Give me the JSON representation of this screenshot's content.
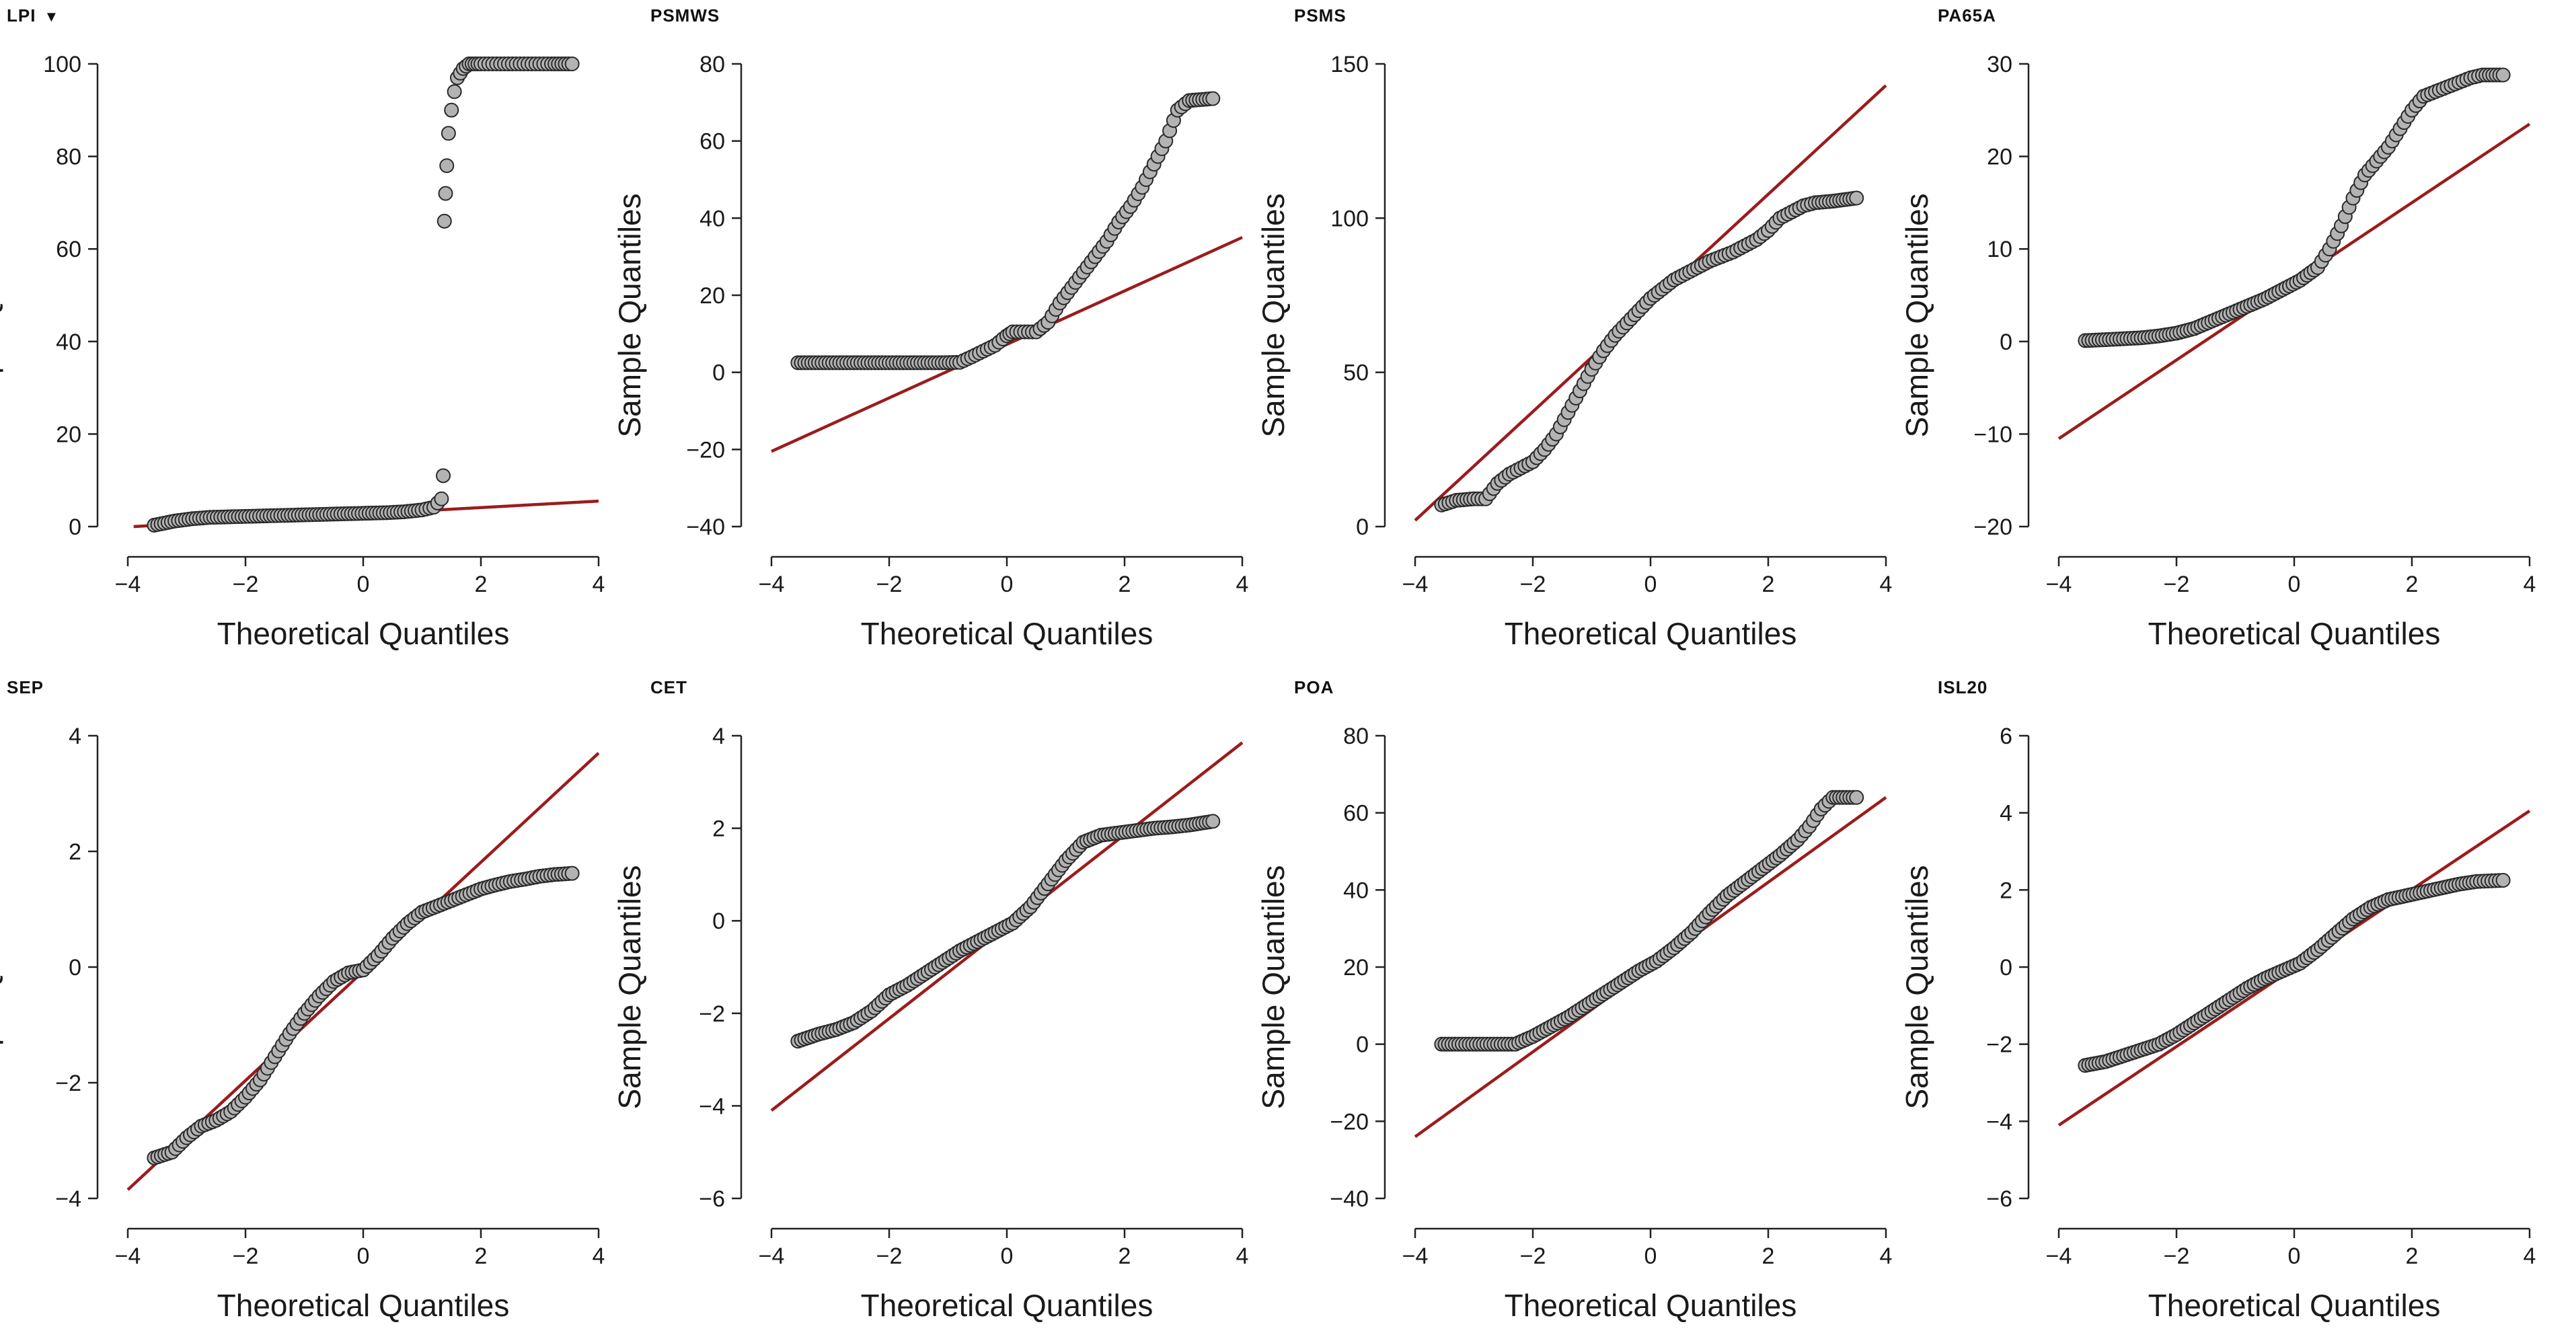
{
  "menu_caret": "▼",
  "chart_data": [
    {
      "type": "scatter",
      "title": "LPI",
      "xlabel": "Theoretical Quantiles",
      "ylabel": "Sample Quantiles",
      "xlim": [
        -4,
        4
      ],
      "ylim": [
        0,
        100
      ],
      "xticks": [
        -4,
        -2,
        0,
        2,
        4
      ],
      "yticks": [
        0,
        20,
        40,
        60,
        80,
        100
      ],
      "line": {
        "x": [
          -3.9,
          4.0
        ],
        "y": [
          0.0,
          5.5
        ],
        "color": "#9b1c1c"
      },
      "points": {
        "x": [
          -3.55,
          -3.2,
          -2.9,
          -2.6,
          -2.3,
          -2.0,
          -1.7,
          -1.4,
          -1.1,
          -0.8,
          -0.5,
          -0.2,
          0.1,
          0.4,
          0.7,
          1.0,
          1.2,
          1.33,
          1.36,
          1.38,
          1.4,
          1.42,
          1.45,
          1.5,
          1.55,
          1.6,
          1.7,
          1.8,
          1.9,
          2.0,
          2.2,
          2.4,
          2.6,
          2.8,
          3.0,
          3.2,
          3.55
        ],
        "y": [
          0.3,
          1.2,
          1.7,
          2.0,
          2.1,
          2.2,
          2.3,
          2.4,
          2.5,
          2.6,
          2.7,
          2.8,
          2.9,
          3.0,
          3.2,
          3.6,
          4.2,
          6.0,
          11.0,
          66.0,
          72.0,
          78.0,
          85.0,
          90.0,
          94.0,
          97.0,
          99.0,
          100,
          100,
          100,
          100,
          100,
          100,
          100,
          100,
          100,
          100
        ]
      }
    },
    {
      "type": "scatter",
      "title": "PSMWS",
      "xlabel": "Theoretical Quantiles",
      "ylabel": "Sample Quantiles",
      "xlim": [
        -4,
        4
      ],
      "ylim": [
        -40,
        80
      ],
      "xticks": [
        -4,
        -2,
        0,
        2,
        4
      ],
      "yticks": [
        -40,
        -20,
        0,
        20,
        40,
        60,
        80
      ],
      "line": {
        "x": [
          -4.0,
          4.0
        ],
        "y": [
          -20.5,
          35.0
        ],
        "color": "#9b1c1c"
      },
      "points": {
        "x": [
          -3.55,
          -3.2,
          -2.9,
          -2.6,
          -2.3,
          -2.0,
          -1.7,
          -1.4,
          -1.1,
          -0.8,
          -0.6,
          -0.4,
          -0.2,
          0.0,
          0.1,
          0.3,
          0.5,
          0.7,
          0.9,
          1.1,
          1.3,
          1.5,
          1.7,
          1.9,
          2.1,
          2.3,
          2.5,
          2.7,
          2.9,
          3.1,
          3.5
        ],
        "y": [
          2.5,
          2.5,
          2.5,
          2.5,
          2.5,
          2.5,
          2.5,
          2.5,
          2.5,
          2.6,
          4.0,
          5.5,
          7.0,
          9.5,
          10.5,
          10.5,
          10.5,
          13.0,
          18.0,
          22.0,
          26.0,
          30.0,
          34.0,
          39.0,
          43.0,
          48.0,
          54.0,
          60.0,
          68.0,
          70.5,
          71.0
        ]
      }
    },
    {
      "type": "scatter",
      "title": "PSMS",
      "xlabel": "Theoretical Quantiles",
      "ylabel": "Sample Quantiles",
      "xlim": [
        -4,
        4
      ],
      "ylim": [
        0,
        150
      ],
      "xticks": [
        -4,
        -2,
        0,
        2,
        4
      ],
      "yticks": [
        0,
        50,
        100,
        150
      ],
      "line": {
        "x": [
          -4.0,
          4.0
        ],
        "y": [
          2.0,
          143.0
        ],
        "color": "#9b1c1c"
      },
      "points": {
        "x": [
          -3.55,
          -3.3,
          -3.0,
          -2.8,
          -2.6,
          -2.4,
          -2.2,
          -2.0,
          -1.8,
          -1.6,
          -1.4,
          -1.2,
          -1.0,
          -0.8,
          -0.6,
          -0.4,
          -0.2,
          0.0,
          0.2,
          0.4,
          0.6,
          0.8,
          1.0,
          1.2,
          1.4,
          1.6,
          1.8,
          2.0,
          2.2,
          2.4,
          2.6,
          2.8,
          3.1,
          3.5
        ],
        "y": [
          7.0,
          8.5,
          9.0,
          9.0,
          14.0,
          17.0,
          19.0,
          21.0,
          25.0,
          30.0,
          37.0,
          44.0,
          51.0,
          57.0,
          62.0,
          66.0,
          70.0,
          74.0,
          77.0,
          80.0,
          82.0,
          84.0,
          86.0,
          87.5,
          89.0,
          91.0,
          93.0,
          96.0,
          100.0,
          102.0,
          104.0,
          105.0,
          105.5,
          106.5
        ]
      }
    },
    {
      "type": "scatter",
      "title": "PA65A",
      "xlabel": "Theoretical Quantiles",
      "ylabel": "Sample Quantiles",
      "xlim": [
        -4,
        4
      ],
      "ylim": [
        -20,
        30
      ],
      "xticks": [
        -4,
        -2,
        0,
        2,
        4
      ],
      "yticks": [
        -20,
        -10,
        0,
        10,
        20,
        30
      ],
      "line": {
        "x": [
          -4.0,
          4.0
        ],
        "y": [
          -10.5,
          23.5
        ],
        "color": "#9b1c1c"
      },
      "points": {
        "x": [
          -3.55,
          -3.2,
          -2.9,
          -2.6,
          -2.3,
          -2.0,
          -1.7,
          -1.4,
          -1.1,
          -0.8,
          -0.5,
          -0.2,
          0.1,
          0.4,
          0.6,
          0.8,
          1.0,
          1.2,
          1.4,
          1.6,
          1.8,
          2.0,
          2.2,
          2.4,
          2.6,
          2.8,
          3.0,
          3.2,
          3.55
        ],
        "y": [
          0.1,
          0.2,
          0.3,
          0.4,
          0.6,
          0.9,
          1.4,
          2.2,
          3.0,
          3.8,
          4.6,
          5.6,
          6.6,
          8.0,
          10.0,
          12.5,
          15.5,
          18.0,
          19.5,
          21.0,
          23.0,
          25.0,
          26.5,
          27.0,
          27.5,
          28.0,
          28.5,
          28.8,
          28.8
        ]
      }
    },
    {
      "type": "scatter",
      "title": "SEP",
      "xlabel": "Theoretical Quantiles",
      "ylabel": "Sample Quantiles",
      "xlim": [
        -4,
        4
      ],
      "ylim": [
        -4,
        4
      ],
      "xticks": [
        -4,
        -2,
        0,
        2,
        4
      ],
      "yticks": [
        -4,
        -2,
        0,
        2,
        4
      ],
      "line": {
        "x": [
          -4.0,
          4.0
        ],
        "y": [
          -3.85,
          3.7
        ],
        "color": "#9b1c1c"
      },
      "points": {
        "x": [
          -3.55,
          -3.25,
          -3.0,
          -2.75,
          -2.5,
          -2.25,
          -2.0,
          -1.75,
          -1.5,
          -1.25,
          -1.0,
          -0.75,
          -0.5,
          -0.25,
          0.0,
          0.25,
          0.5,
          0.75,
          1.0,
          1.25,
          1.5,
          1.75,
          2.0,
          2.25,
          2.5,
          2.75,
          3.0,
          3.25,
          3.55
        ],
        "y": [
          -3.3,
          -3.2,
          -2.95,
          -2.75,
          -2.65,
          -2.5,
          -2.25,
          -1.95,
          -1.55,
          -1.15,
          -0.8,
          -0.5,
          -0.25,
          -0.1,
          -0.05,
          0.2,
          0.5,
          0.75,
          0.95,
          1.05,
          1.15,
          1.25,
          1.35,
          1.42,
          1.48,
          1.52,
          1.57,
          1.6,
          1.62
        ]
      }
    },
    {
      "type": "scatter",
      "title": "CET",
      "xlabel": "Theoretical Quantiles",
      "ylabel": "Sample Quantiles",
      "xlim": [
        -4,
        4
      ],
      "ylim": [
        -6,
        4
      ],
      "xticks": [
        -4,
        -2,
        0,
        2,
        4
      ],
      "yticks": [
        -6,
        -4,
        -2,
        0,
        2,
        4
      ],
      "line": {
        "x": [
          -4.0,
          4.0
        ],
        "y": [
          -4.1,
          3.85
        ],
        "color": "#9b1c1c"
      },
      "points": {
        "x": [
          -3.55,
          -3.2,
          -2.9,
          -2.6,
          -2.3,
          -2.0,
          -1.7,
          -1.4,
          -1.1,
          -0.8,
          -0.5,
          -0.2,
          0.1,
          0.4,
          0.7,
          1.0,
          1.3,
          1.6,
          1.9,
          2.2,
          2.5,
          2.8,
          3.1,
          3.5
        ],
        "y": [
          -2.6,
          -2.45,
          -2.35,
          -2.2,
          -1.95,
          -1.6,
          -1.4,
          -1.15,
          -0.9,
          -0.65,
          -0.45,
          -0.25,
          -0.05,
          0.3,
          0.8,
          1.3,
          1.7,
          1.85,
          1.9,
          1.95,
          2.0,
          2.03,
          2.07,
          2.15
        ]
      }
    },
    {
      "type": "scatter",
      "title": "POA",
      "xlabel": "Theoretical Quantiles",
      "ylabel": "Sample Quantiles",
      "xlim": [
        -4,
        4
      ],
      "ylim": [
        -40,
        80
      ],
      "xticks": [
        -4,
        -2,
        0,
        2,
        4
      ],
      "yticks": [
        -40,
        -20,
        0,
        20,
        40,
        60,
        80
      ],
      "line": {
        "x": [
          -4.0,
          4.0
        ],
        "y": [
          -24.0,
          64.0
        ],
        "color": "#9b1c1c"
      },
      "points": {
        "x": [
          -3.55,
          -3.2,
          -2.9,
          -2.6,
          -2.3,
          -2.0,
          -1.7,
          -1.4,
          -1.1,
          -0.8,
          -0.5,
          -0.2,
          0.1,
          0.4,
          0.7,
          1.0,
          1.3,
          1.6,
          1.9,
          2.2,
          2.5,
          2.7,
          2.9,
          3.1,
          3.5
        ],
        "y": [
          0.0,
          0.0,
          0.0,
          0.0,
          0.0,
          2.0,
          4.5,
          7.0,
          10.0,
          13.0,
          16.0,
          19.0,
          21.5,
          25.0,
          29.0,
          34.0,
          38.5,
          42.0,
          45.5,
          49.0,
          53.0,
          56.5,
          61.0,
          64.0,
          64.0
        ]
      }
    },
    {
      "type": "scatter",
      "title": "ISL20",
      "xlabel": "Theoretical Quantiles",
      "ylabel": "Sample Quantiles",
      "xlim": [
        -4,
        4
      ],
      "ylim": [
        -6,
        6
      ],
      "xticks": [
        -4,
        -2,
        0,
        2,
        4
      ],
      "yticks": [
        -6,
        -4,
        -2,
        0,
        2,
        4,
        6
      ],
      "line": {
        "x": [
          -4.0,
          4.0
        ],
        "y": [
          -4.1,
          4.05
        ],
        "color": "#9b1c1c"
      },
      "points": {
        "x": [
          -3.55,
          -3.2,
          -2.9,
          -2.6,
          -2.3,
          -2.0,
          -1.7,
          -1.4,
          -1.1,
          -0.8,
          -0.5,
          -0.2,
          0.1,
          0.4,
          0.7,
          1.0,
          1.3,
          1.6,
          1.9,
          2.2,
          2.5,
          2.8,
          3.1,
          3.55
        ],
        "y": [
          -2.55,
          -2.45,
          -2.3,
          -2.15,
          -2.0,
          -1.75,
          -1.45,
          -1.15,
          -0.85,
          -0.55,
          -0.3,
          -0.1,
          0.1,
          0.45,
          0.85,
          1.25,
          1.55,
          1.75,
          1.85,
          1.95,
          2.05,
          2.15,
          2.22,
          2.25
        ]
      }
    }
  ]
}
